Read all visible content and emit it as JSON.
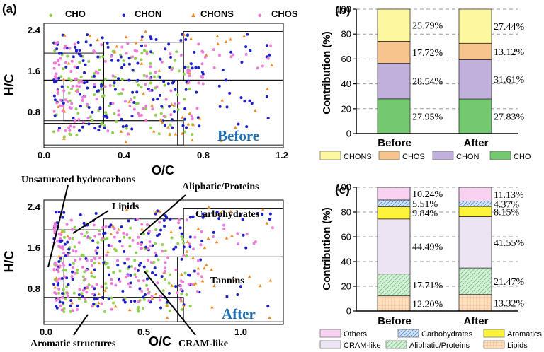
{
  "colors": {
    "CHO": "#8fd14f",
    "CHON": "#1f1fc8",
    "CHONS": "#f08c20",
    "CHOS": "#f07ad8",
    "bar_CHONS": "#fdf8a0",
    "bar_CHOS": "#f6c48c",
    "bar_CHON": "#c2b0dc",
    "bar_CHO": "#73c870",
    "bar_Others": "#f9d2f2",
    "bar_Carbohydrates": "#cfe2fa",
    "bar_Aromatics": "#fdf338",
    "bar_CRAM": "#ece4f2",
    "bar_Aliphatic": "#d3efd5",
    "bar_Lipids": "#fde0c4",
    "label_blue": "#1f6fb2"
  },
  "panels": {
    "a": "(a)",
    "b": "(b)",
    "c": "(c)"
  },
  "chart_data": [
    {
      "id": "vk-before",
      "type": "scatter",
      "title": "Before",
      "xlabel": "O/C",
      "ylabel": "H/C",
      "xlim": [
        0,
        1.2
      ],
      "ylim": [
        0.25,
        2.55
      ],
      "xticks": [
        "0.0",
        "0.4",
        "0.8",
        "1.2"
      ],
      "xtick_values": [
        0,
        0.4,
        0.8,
        1.2
      ],
      "yticks": [
        "0.8",
        "1.6",
        "2.4"
      ],
      "ytick_values": [
        0.8,
        1.6,
        2.4
      ],
      "legend": [
        "CHO",
        "CHON",
        "CHONS",
        "CHOS"
      ],
      "series": [
        {
          "name": "CHO",
          "count": 110,
          "seed": 11
        },
        {
          "name": "CHON",
          "count": 170,
          "seed": 23
        },
        {
          "name": "CHONS",
          "count": 55,
          "seed": 37
        },
        {
          "name": "CHOS",
          "count": 140,
          "seed": 41
        }
      ]
    },
    {
      "id": "vk-after",
      "type": "scatter",
      "title": "After",
      "xlabel": "O/C",
      "ylabel": "H/C",
      "xlim": [
        0,
        1.2
      ],
      "ylim": [
        0.25,
        2.55
      ],
      "xticks": [
        "0.0",
        "0.5",
        "1.0"
      ],
      "xtick_values": [
        0,
        0.5,
        1.0
      ],
      "yticks": [
        "0.8",
        "1.6",
        "2.4"
      ],
      "ytick_values": [
        0.8,
        1.6,
        2.4
      ],
      "annotations": [
        "Unsaturated hydrocarbons",
        "Lipids",
        "Aliphatic/Proteins",
        "Carbohydrates",
        "Tannins",
        "Aromatic structures",
        "CRAM-like"
      ],
      "series": [
        {
          "name": "CHO",
          "count": 120,
          "seed": 53
        },
        {
          "name": "CHON",
          "count": 160,
          "seed": 67
        },
        {
          "name": "CHONS",
          "count": 60,
          "seed": 71
        },
        {
          "name": "CHOS",
          "count": 170,
          "seed": 83
        }
      ]
    },
    {
      "id": "bar-b",
      "type": "bar",
      "stacked": true,
      "categories": [
        "Before",
        "After"
      ],
      "ylabel": "Contribution (%)",
      "ylim": [
        0,
        100
      ],
      "yticks": [
        "0",
        "20",
        "40",
        "60",
        "80",
        "100"
      ],
      "series": [
        {
          "name": "CHO",
          "values": [
            27.95,
            27.83
          ],
          "labels": [
            "27.95%",
            "27.83%"
          ]
        },
        {
          "name": "CHON",
          "values": [
            28.54,
            31.61
          ],
          "labels": [
            "28.54%",
            "31.61%"
          ]
        },
        {
          "name": "CHOS",
          "values": [
            17.72,
            13.12
          ],
          "labels": [
            "17.72%",
            "13.12%"
          ]
        },
        {
          "name": "CHONS",
          "values": [
            25.79,
            27.44
          ],
          "labels": [
            "25.79%",
            "27.44%"
          ]
        }
      ],
      "legend": [
        "CHONS",
        "CHOS",
        "CHON",
        "CHO"
      ]
    },
    {
      "id": "bar-c",
      "type": "bar",
      "stacked": true,
      "categories": [
        "Before",
        "After"
      ],
      "ylabel": "Contribution (%)",
      "ylim": [
        0,
        100
      ],
      "yticks": [
        "0",
        "20",
        "40",
        "60",
        "80",
        "100"
      ],
      "series": [
        {
          "name": "Lipids",
          "values": [
            12.2,
            13.32
          ],
          "labels": [
            "12.20%",
            "13.32%"
          ]
        },
        {
          "name": "Aliphatic/Proteins",
          "values": [
            17.71,
            21.47
          ],
          "labels": [
            "17.71%",
            "21.47%"
          ]
        },
        {
          "name": "CRAM-like",
          "values": [
            44.49,
            41.55
          ],
          "labels": [
            "44.49%",
            "41.55%"
          ]
        },
        {
          "name": "Aromatics",
          "values": [
            9.84,
            8.15
          ],
          "labels": [
            "9.84%",
            "8.15%"
          ]
        },
        {
          "name": "Carbohydrates",
          "values": [
            5.51,
            4.37
          ],
          "labels": [
            "5.51%",
            "4.37%"
          ]
        },
        {
          "name": "Others",
          "values": [
            10.24,
            11.13
          ],
          "labels": [
            "10.24%",
            "11.13%"
          ]
        }
      ],
      "legend": [
        "Others",
        "Carbohydrates",
        "Aromatics",
        "CRAM-like",
        "Aliphatic/Proteins",
        "Lipids"
      ]
    }
  ]
}
